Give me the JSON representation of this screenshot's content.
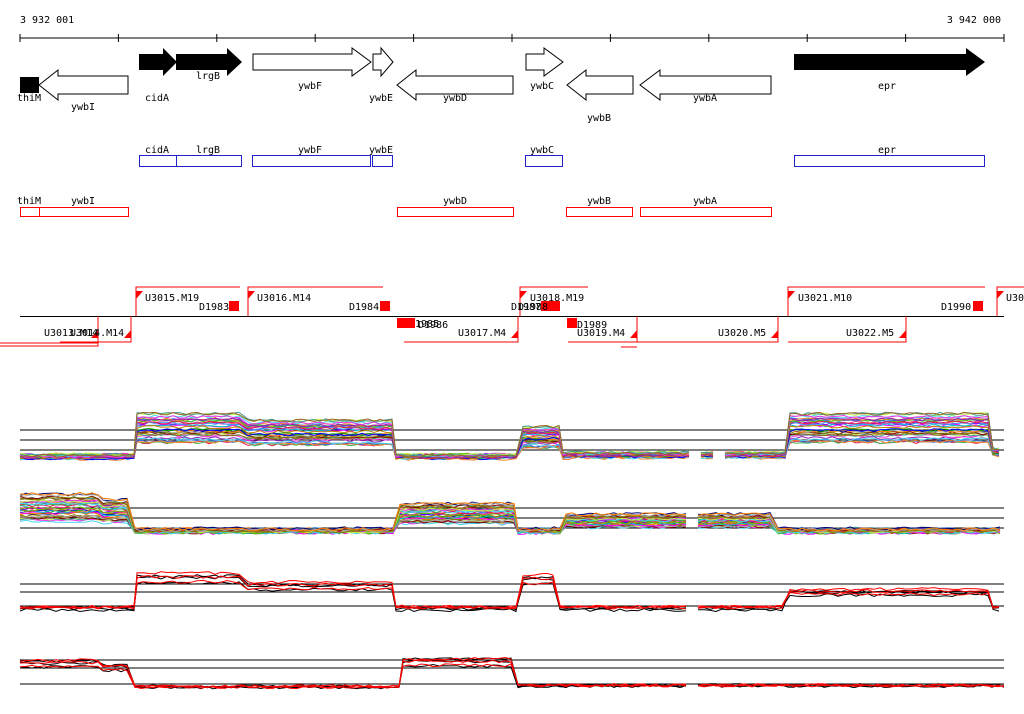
{
  "coords": {
    "start": "3 932 001",
    "end": "3 942 000"
  },
  "colors": {
    "gene_filled": "#000000",
    "blue_box": "#2222cc",
    "red": "#ff0000",
    "black": "#000000"
  },
  "genes": [
    {
      "name": "thiM",
      "strand": "+",
      "filled": true
    },
    {
      "name": "ywbI",
      "strand": "-",
      "filled": false
    },
    {
      "name": "cidA",
      "strand": "+",
      "filled": true
    },
    {
      "name": "lrgB",
      "strand": "+",
      "filled": true
    },
    {
      "name": "ywbF",
      "strand": "+",
      "filled": false
    },
    {
      "name": "ywbE",
      "strand": "+",
      "filled": false
    },
    {
      "name": "ywbD",
      "strand": "-",
      "filled": false
    },
    {
      "name": "ywbC",
      "strand": "+",
      "filled": false
    },
    {
      "name": "ywbB",
      "strand": "-",
      "filled": false
    },
    {
      "name": "ywbA",
      "strand": "-",
      "filled": false
    },
    {
      "name": "epr",
      "strand": "+",
      "filled": true
    }
  ],
  "blue_boxes": [
    "cidA",
    "lrgB",
    "ywbF",
    "ywbE",
    "ywbC",
    "epr"
  ],
  "red_boxes": [
    "thiM",
    "ywbI",
    "ywbD",
    "ywbB",
    "ywbA"
  ],
  "transcripts_upper": [
    "U3015.M19",
    "U3016.M14",
    "U3018.M19",
    "U3021.M10",
    "U30"
  ],
  "transcripts_lower": [
    "U3013.M14",
    "U3014.M14",
    "U3017.M4",
    "U3019.M4",
    "U3020.M5",
    "U3022.M5"
  ],
  "terminators": [
    "D1983",
    "D1984",
    "D1985",
    "D1986",
    "D1987",
    "D1988",
    "D1989",
    "D1990"
  ]
}
